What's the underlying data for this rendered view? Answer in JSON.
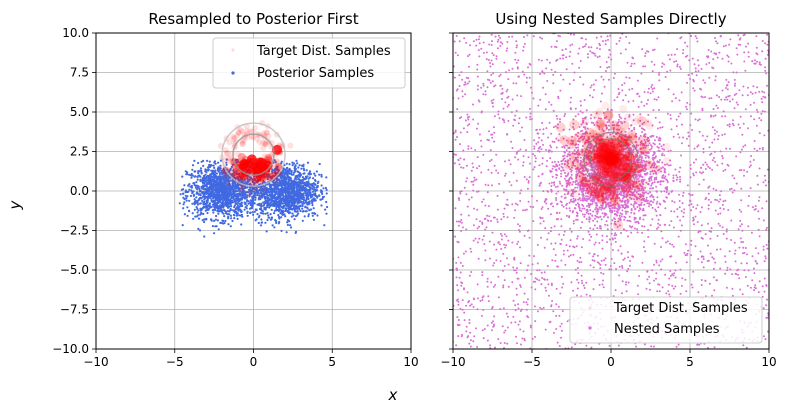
{
  "figure": {
    "xlabel": "x",
    "ylabel": "y"
  },
  "chart_data": [
    {
      "type": "scatter",
      "title": "Resampled to Posterior First",
      "xlim": [
        -10,
        10
      ],
      "ylim": [
        -10,
        10
      ],
      "x_ticks": [
        "−10",
        "−5",
        "0",
        "5",
        "10"
      ],
      "y_ticks": [
        "10.0",
        "7.5",
        "5.0",
        "2.5",
        "0.0",
        "−2.5",
        "−5.0",
        "−7.5",
        "−10.0"
      ],
      "grid": true,
      "legend_position": "top-right",
      "series": [
        {
          "name": "Target Dist. Samples",
          "color": "#ff0000",
          "distribution": {
            "shape": "ring",
            "center": [
              0,
              2.2
            ],
            "radius": 1.5,
            "spread": 0.35
          },
          "highlighted_points": [
            [
              -0.6,
              1.7
            ],
            [
              0.2,
              1.5
            ],
            [
              0.9,
              1.6
            ],
            [
              1.5,
              2.6
            ],
            [
              -0.1,
              2.0
            ],
            [
              0.5,
              1.8
            ]
          ]
        },
        {
          "name": "Posterior Samples",
          "color": "#4169e1",
          "distribution": {
            "shape": "two-lobes",
            "lobes": [
              {
                "center": [
                  -2.0,
                  0.0
                ],
                "sd": [
                  1.1,
                  0.85
                ]
              },
              {
                "center": [
                  2.0,
                  0.0
                ],
                "sd": [
                  1.1,
                  0.85
                ]
              }
            ]
          },
          "x_range": [
            -4.7,
            4.7
          ],
          "y_range": [
            -3.1,
            2.0
          ]
        }
      ],
      "reference_circles": [
        {
          "center": [
            0,
            2.3
          ],
          "radius": 1.3,
          "color": "#999999"
        },
        {
          "center": [
            0,
            2.3
          ],
          "radius": 2.0,
          "color": "#bbbbbb"
        }
      ]
    },
    {
      "type": "scatter",
      "title": "Using Nested Samples Directly",
      "xlim": [
        -10,
        10
      ],
      "ylim": [
        -10,
        10
      ],
      "x_ticks": [
        "−10",
        "−5",
        "0",
        "5",
        "10"
      ],
      "y_ticks": [
        "10.0",
        "7.5",
        "5.0",
        "2.5",
        "0.0",
        "−2.5",
        "−5.0",
        "−7.5",
        "−10.0"
      ],
      "y_tick_labels_shown": false,
      "grid": true,
      "legend_position": "bottom-right",
      "series": [
        {
          "name": "Target Dist. Samples",
          "color": "#ff0000",
          "distribution": {
            "shape": "blob",
            "center": [
              0,
              2.0
            ],
            "radius": 1.9,
            "spread": 0.5
          }
        },
        {
          "name": "Nested Samples",
          "color": "#da70d6",
          "distribution": {
            "shape": "uniform-plus-core",
            "uniform_range": [
              [
                -10,
                10
              ],
              [
                -10,
                10
              ]
            ],
            "core": {
              "center": [
                0,
                1.0
              ],
              "sd": [
                1.6,
                1.4
              ]
            }
          }
        }
      ],
      "reference_circles": [
        {
          "center": [
            0,
            2.0
          ],
          "radius": 1.7,
          "color": "#777777"
        },
        {
          "center": [
            0,
            2.0
          ],
          "radius": 1.3,
          "color": "#777777"
        }
      ]
    }
  ]
}
